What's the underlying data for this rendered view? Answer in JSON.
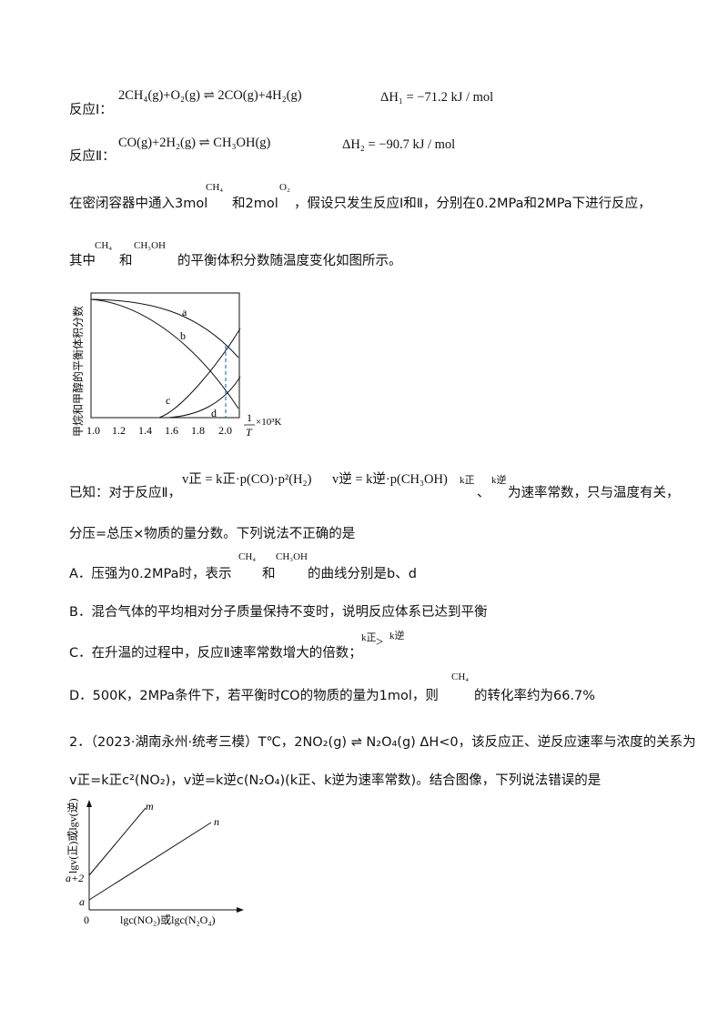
{
  "reaction1": {
    "label": "反应Ⅰ：",
    "equation": "2CH₄(g)+O₂(g) ⇌ 2CO(g)+4H₂(g)",
    "enthalpy": "ΔH₁ = −71.2 kJ / mol"
  },
  "reaction2": {
    "label": "反应Ⅱ：",
    "equation": "CO(g)+2H₂(g) ⇌ CH₃OH(g)",
    "enthalpy": "ΔH₂ = −90.7 kJ / mol"
  },
  "intro": {
    "p1_a": "在密闭容器中通入3mol",
    "p1_ch4": "CH₄",
    "p1_b": "和2mol",
    "p1_o2": "O₂",
    "p1_c": "，假设只发生反应Ⅰ和Ⅱ，分别在0.2MPa和2MPa下进行反应，",
    "p2_a": "其中",
    "p2_ch4": "CH₄",
    "p2_b": "和",
    "p2_ch3oh": "CH₃OH",
    "p2_c": "的平衡体积分数随温度变化如图所示。"
  },
  "chart1": {
    "ylabel": "甲烷和甲醇的平衡体积分数",
    "xlabel_top": "1",
    "xlabel_bottom": "T",
    "xlabel_unit": "×10³K",
    "ticks": [
      "1.0",
      "1.2",
      "1.4",
      "1.6",
      "1.8",
      "2.0"
    ],
    "curve_labels": [
      "a",
      "b",
      "c",
      "d"
    ]
  },
  "known": {
    "prefix": "已知：对于反应Ⅱ，",
    "v_forward": "v正 = k正·p(CO)·p²(H₂)",
    "v_reverse": "v逆 = k逆·p(CH₃OH)",
    "k_forward": "k正",
    "sep": "、",
    "k_reverse": "k逆",
    "suffix": "为速率常数，只与温度有关，",
    "line2": "分压=总压×物质的量分数。下列说法不正确的是"
  },
  "options": {
    "A_a": "A．压强为0.2MPa时，表示",
    "A_ch4": "CH₄",
    "A_b": "和",
    "A_ch3oh": "CH₃OH",
    "A_c": "的曲线分别是b、d",
    "B": "B．混合气体的平均相对分子质量保持不变时，说明反应体系已达到平衡",
    "C_a": "C．在升温的过程中，反应Ⅱ速率常数增大的倍数；",
    "C_k1": "k正",
    "C_gt": ">",
    "C_k2": "k逆",
    "D_a": "D．500K，2MPa条件下，若平衡时CO的物质的量为1mol，则",
    "D_ch4": "CH₄",
    "D_b": "的转化率约为66.7%"
  },
  "q2": {
    "line1": "2．（2023·湖南永州·统考三模）T℃，2NO₂(g) ⇌ N₂O₄(g)  ΔH<0，该反应正、逆反应速率与浓度的关系为",
    "line2": "v正=k正c²(NO₂)，v逆=k逆c(N₂O₄)(k正、k逆为速率常数)。结合图像，下列说法错误的是"
  },
  "chart2": {
    "ylabel": "lgv(正)或lgv(逆)",
    "xlabel": "lgc(NO₂)或lgc(N₂O₄)",
    "origin": "0",
    "tick_a": "a",
    "tick_a2": "a+2",
    "line_m": "m",
    "line_n": "n"
  }
}
